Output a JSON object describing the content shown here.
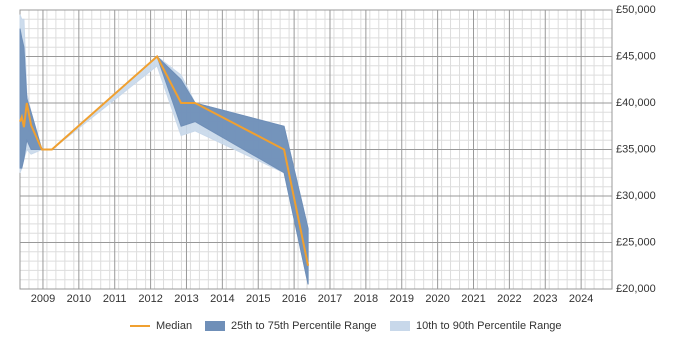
{
  "chart_data": {
    "type": "line-band",
    "x": [
      2008.36,
      2008.41,
      2008.47,
      2008.55,
      2008.67,
      2008.97,
      2009.25,
      2012.18,
      2012.85,
      2013.24,
      2015.72,
      2016.39
    ],
    "series": [
      {
        "name": "Median",
        "color": "#f0a030",
        "values": [
          38000,
          38500,
          37400,
          40000,
          37600,
          35000,
          35000,
          45000,
          40000,
          40000,
          35000,
          22500
        ]
      },
      {
        "name": "25th to 75th Percentile Range",
        "color": "#6f8fb8",
        "lower": [
          33000,
          33000,
          34000,
          36000,
          35000,
          35000,
          35000,
          45000,
          37500,
          38000,
          32500,
          20500
        ],
        "upper": [
          48000,
          47000,
          46000,
          40500,
          39000,
          35000,
          35000,
          45000,
          42500,
          40000,
          37500,
          26500
        ]
      },
      {
        "name": "10th to 90th Percentile Range",
        "color": "#c8d8ea",
        "lower": [
          32500,
          33000,
          34000,
          35000,
          34500,
          35000,
          35000,
          44000,
          36500,
          37000,
          32500,
          20500
        ],
        "upper": [
          49500,
          49000,
          49000,
          41000,
          39000,
          35000,
          35000,
          45000,
          43000,
          40000,
          37500,
          26500
        ]
      }
    ],
    "xlim": [
      2008.36,
      2024.86
    ],
    "xticks": [
      2009,
      2010,
      2011,
      2012,
      2013,
      2014,
      2015,
      2016,
      2017,
      2018,
      2019,
      2020,
      2021,
      2022,
      2023,
      2024
    ],
    "ylim": [
      20000,
      50000
    ],
    "yticks": [
      {
        "value": 20000,
        "label": "£20,000"
      },
      {
        "value": 25000,
        "label": "£25,000"
      },
      {
        "value": 30000,
        "label": "£30,000"
      },
      {
        "value": 35000,
        "label": "£35,000"
      },
      {
        "value": 40000,
        "label": "£40,000"
      },
      {
        "value": 45000,
        "label": "£45,000"
      },
      {
        "value": 50000,
        "label": "£50,000"
      }
    ],
    "grid": true
  }
}
